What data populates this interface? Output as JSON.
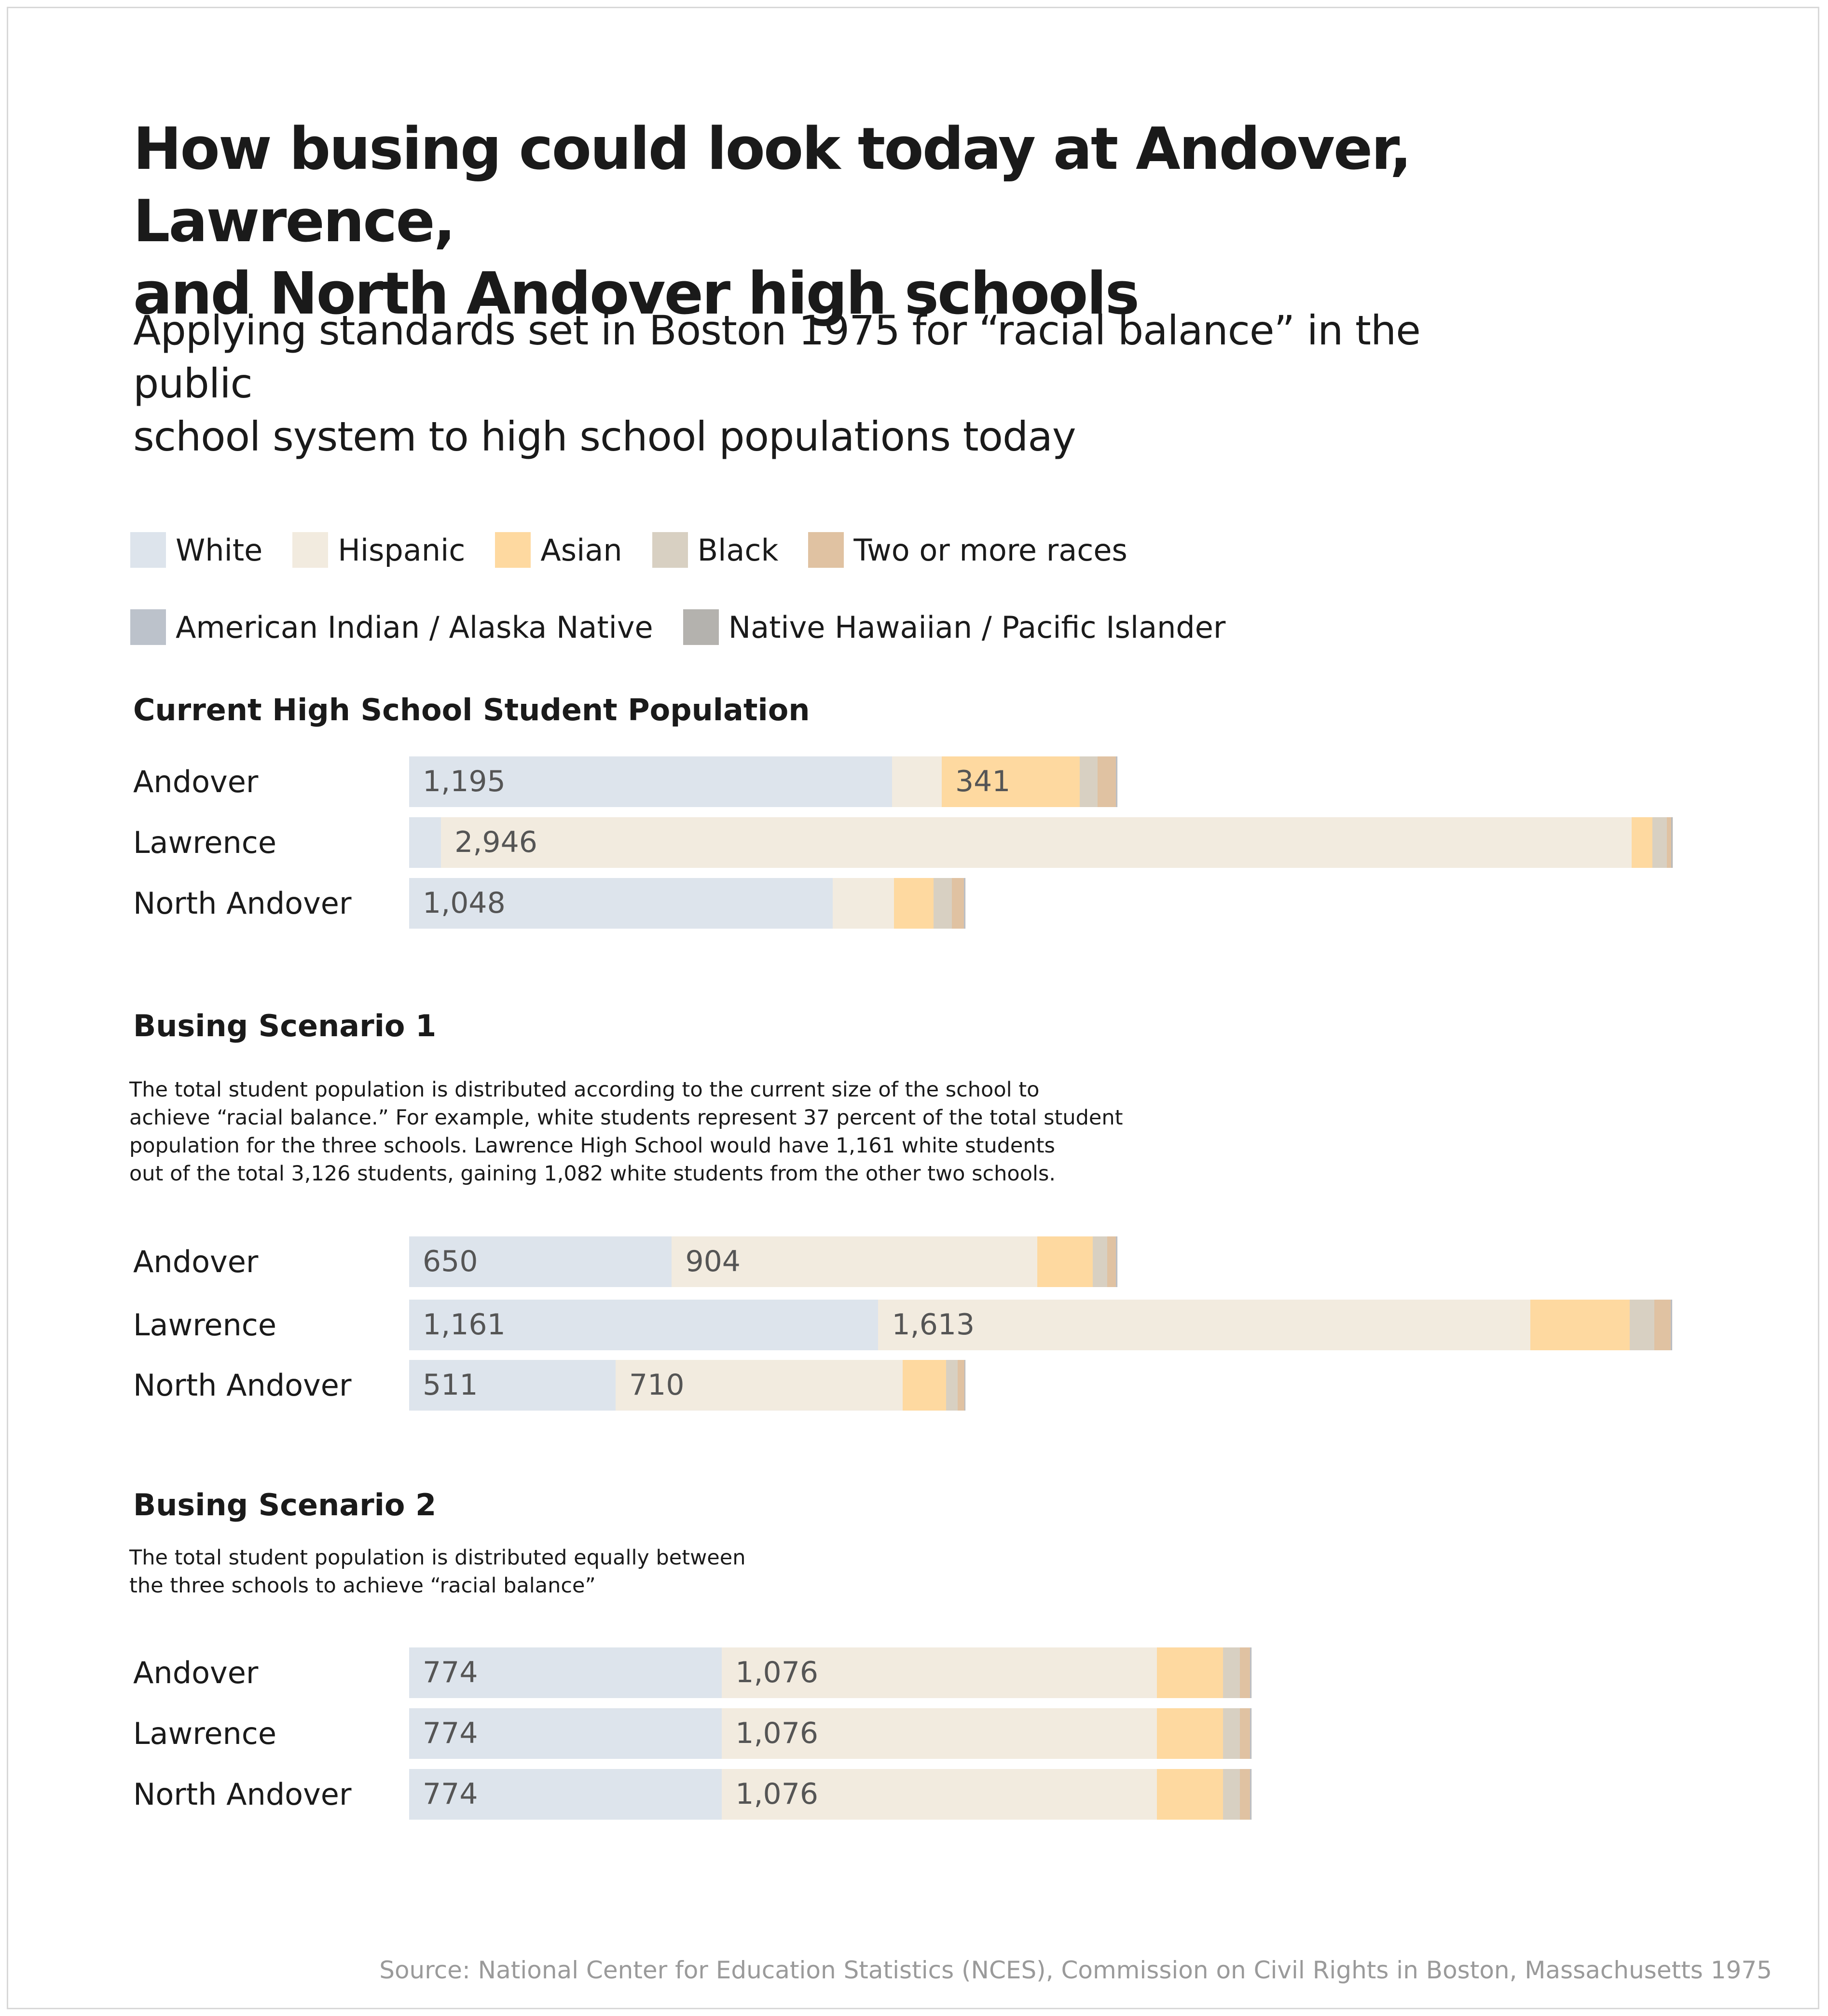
{
  "title_lines": [
    "How busing could look today at Andover, Lawrence,",
    "and North Andover high schools"
  ],
  "subtitle_lines": [
    "Applying standards set in Boston 1975 for “racial balance” in the public",
    "school system to high school populations today"
  ],
  "source": "Source: National Center for Education Statistics (NCES), Commission on Civil Rights in Boston, Massachusetts 1975",
  "colors": {
    "White": "#dde4ec",
    "Hispanic": "#f2ebdf",
    "Asian": "#fed9a0",
    "Black": "#d8d0c2",
    "Two or more races": "#e0c2a2",
    "American Indian / Alaska Native": "#bcc2cb",
    "Native Hawaiian / Pacific Islander": "#b4b2ae"
  },
  "legend_rows": [
    [
      "White",
      "Hispanic",
      "Asian",
      "Black",
      "Two or more races"
    ],
    [
      "American Indian / Alaska Native",
      "Native Hawaiian / Pacific Islander"
    ]
  ],
  "chart_data": {
    "type": "bar",
    "orientation": "horizontal-stacked",
    "series_order": [
      "White",
      "Hispanic",
      "Asian",
      "Black",
      "Two or more races",
      "American Indian / Alaska Native",
      "Native Hawaiian / Pacific Islander"
    ],
    "panels": [
      {
        "title": "Current High School Student Population",
        "description": [],
        "rows": [
          {
            "school": "Andover",
            "values": {
              "White": 1195,
              "Hispanic": 123,
              "Asian": 341,
              "Black": 45,
              "Two or more races": 45,
              "American Indian / Alaska Native": 2,
              "Native Hawaiian / Pacific Islander": 2
            },
            "labels": {
              "White": "1,195",
              "Asian": "341"
            }
          },
          {
            "school": "Lawrence",
            "values": {
              "White": 79,
              "Hispanic": 2946,
              "Asian": 52,
              "Black": 36,
              "Two or more races": 10,
              "American Indian / Alaska Native": 2,
              "Native Hawaiian / Pacific Islander": 2
            },
            "labels": {
              "Hispanic": "2,946"
            }
          },
          {
            "school": "North Andover",
            "values": {
              "White": 1048,
              "Hispanic": 152,
              "Asian": 98,
              "Black": 45,
              "Two or more races": 30,
              "American Indian / Alaska Native": 2,
              "Native Hawaiian / Pacific Islander": 2
            },
            "labels": {
              "White": "1,048"
            }
          }
        ]
      },
      {
        "title": "Busing Scenario 1",
        "description": [
          "The total student population is distributed according to the current size of the school to",
          "achieve “racial balance.” For example, white students represent 37 percent of the total student",
          "population for the three schools. Lawrence High School would have 1,161 white students",
          "out of the total 3,126 students, gaining 1,082 white students from the other two schools."
        ],
        "rows": [
          {
            "school": "Andover",
            "values": {
              "White": 650,
              "Hispanic": 904,
              "Asian": 138,
              "Black": 36,
              "Two or more races": 21,
              "American Indian / Alaska Native": 2,
              "Native Hawaiian / Pacific Islander": 2
            },
            "labels": {
              "White": "650",
              "Hispanic": "904"
            }
          },
          {
            "school": "Lawrence",
            "values": {
              "White": 1161,
              "Hispanic": 1613,
              "Asian": 246,
              "Black": 62,
              "Two or more races": 40,
              "American Indian / Alaska Native": 2,
              "Native Hawaiian / Pacific Islander": 2
            },
            "labels": {
              "White": "1,161",
              "Hispanic": "1,613"
            }
          },
          {
            "school": "North Andover",
            "values": {
              "White": 511,
              "Hispanic": 710,
              "Asian": 108,
              "Black": 28,
              "Two or more races": 17,
              "American Indian / Alaska Native": 1,
              "Native Hawaiian / Pacific Islander": 1
            },
            "labels": {
              "White": "511",
              "Hispanic": "710"
            }
          }
        ]
      },
      {
        "title": "Busing Scenario 2",
        "description": [
          "The total student population is distributed equally between",
          "the three schools to achieve “racial balance”"
        ],
        "rows": [
          {
            "school": "Andover",
            "values": {
              "White": 774,
              "Hispanic": 1076,
              "Asian": 164,
              "Black": 42,
              "Two or more races": 25,
              "American Indian / Alaska Native": 2,
              "Native Hawaiian / Pacific Islander": 2
            },
            "labels": {
              "White": "774",
              "Hispanic": "1,076"
            }
          },
          {
            "school": "Lawrence",
            "values": {
              "White": 774,
              "Hispanic": 1076,
              "Asian": 164,
              "Black": 42,
              "Two or more races": 25,
              "American Indian / Alaska Native": 2,
              "Native Hawaiian / Pacific Islander": 2
            },
            "labels": {
              "White": "774",
              "Hispanic": "1,076"
            }
          },
          {
            "school": "North Andover",
            "values": {
              "White": 774,
              "Hispanic": 1076,
              "Asian": 164,
              "Black": 42,
              "Two or more races": 25,
              "American Indian / Alaska Native": 2,
              "Native Hawaiian / Pacific Islander": 2
            },
            "labels": {
              "White": "774",
              "Hispanic": "1,076"
            }
          }
        ]
      }
    ]
  }
}
